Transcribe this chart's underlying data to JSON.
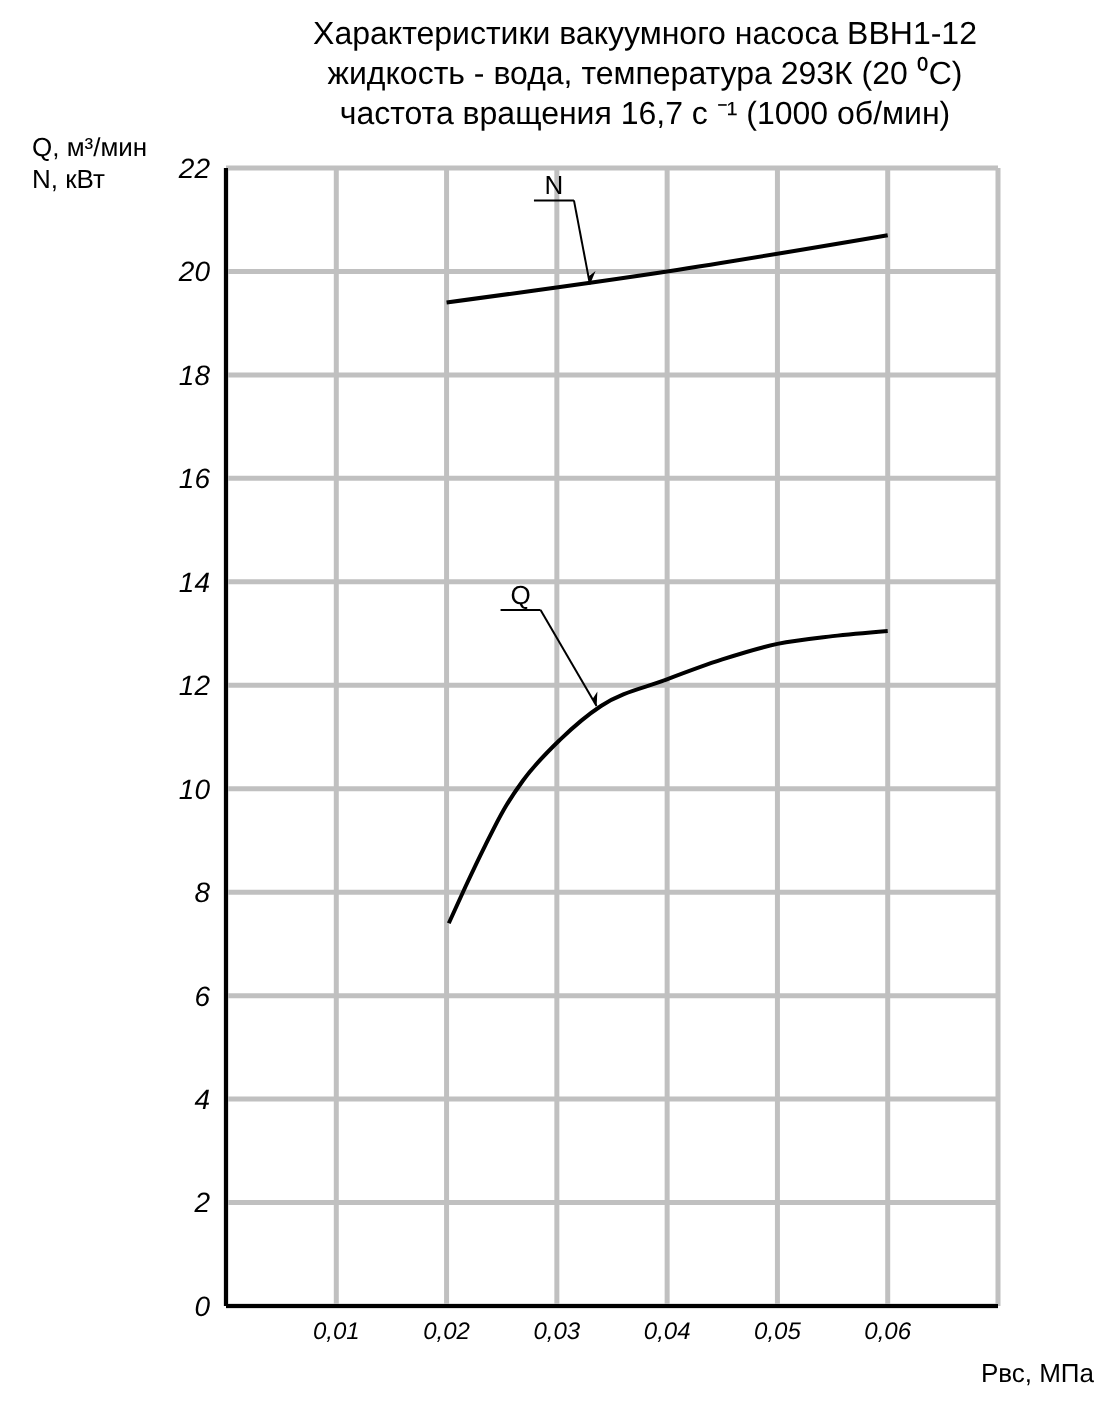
{
  "chart_data": {
    "type": "line",
    "title": "Характеристики вакуумного насоса ВВН1-12",
    "subtitle": "жидкость - вода, температура 293К (20 ⁰С)\nчастота вращения 16,7 с ⁻¹ (1000 об/мин)",
    "xlabel": "Рвс, МПа",
    "ylabel": "Q, м³/мин\nN, кВт",
    "series": [
      {
        "color": "#000000",
        "x": [
          0.02,
          0.04,
          0.06
        ],
        "values": [
          19.4,
          20.0,
          20.7
        ]
      },
      {
        "color": "#000000",
        "x": [
          0.0202,
          0.0217,
          0.0235,
          0.0252,
          0.0269,
          0.0303,
          0.034,
          0.0398,
          0.045,
          0.05,
          0.055,
          0.06
        ],
        "values": [
          7.4,
          8.1,
          8.9,
          9.6,
          10.15,
          10.95,
          11.6,
          12.1,
          12.5,
          12.8,
          12.95,
          13.05
        ]
      }
    ],
    "annotations": [
      {
        "text": "N",
        "x": 0.033,
        "y": 19.75
      },
      {
        "text": "Q",
        "x": 0.0336,
        "y": 11.6
      }
    ],
    "xlim": [
      0,
      0.07
    ],
    "xticks": [
      {
        "value": 0.01,
        "label": "0,01"
      },
      {
        "value": 0.02,
        "label": "0,02"
      },
      {
        "value": 0.03,
        "label": "0,03"
      },
      {
        "value": 0.04,
        "label": "0,04"
      },
      {
        "value": 0.05,
        "label": "0,05"
      },
      {
        "value": 0.06,
        "label": "0,06"
      },
      {
        "value": 0.07,
        "label": null
      }
    ],
    "ylim": [
      0,
      22
    ],
    "yticks": [
      0,
      2,
      4,
      6,
      8,
      10,
      12,
      14,
      16,
      18,
      20,
      22
    ],
    "grid": true,
    "marker": "none",
    "line_style": "solid",
    "legend": false
  }
}
